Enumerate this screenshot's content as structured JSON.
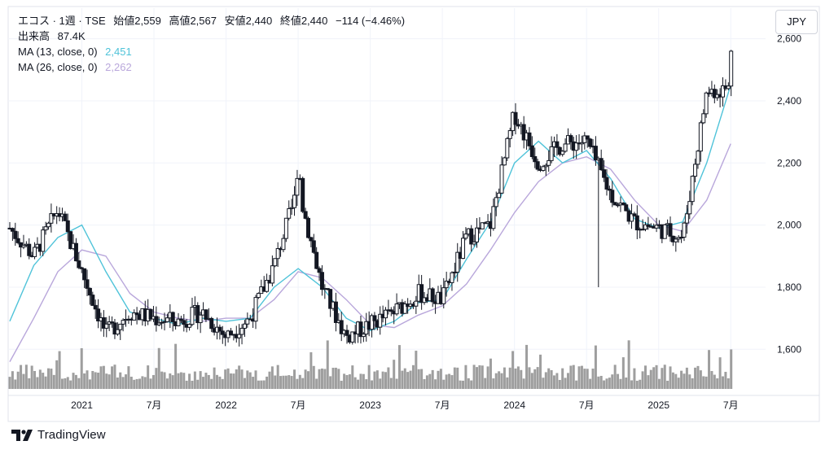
{
  "header": {
    "symbol_line": "エコス · 1週 · TSE",
    "open_label": "始値",
    "open": "2,559",
    "high_label": "高値",
    "high": "2,567",
    "low_label": "安値",
    "low": "2,440",
    "close_label": "終値",
    "close": "2,440",
    "change": "−114 (−4.46%)",
    "volume_label": "出来高",
    "volume": "87.4K",
    "ma13_label": "MA (13, close, 0)",
    "ma13_value": "2,451",
    "ma26_label": "MA (26, close, 0)",
    "ma26_value": "2,262"
  },
  "currency_button": "JPY",
  "brand": "TradingView",
  "colors": {
    "up": "#131722",
    "down": "#131722",
    "volume": "#9e9e9e",
    "ma13": "#4fc3d9",
    "ma26": "#b9a7db",
    "grid": "#f0f3fa"
  },
  "chart_data": {
    "type": "candlestick",
    "title": "",
    "y_axis": {
      "ticks": [
        1600,
        1800,
        2000,
        2200,
        2400,
        2600
      ],
      "ylim": [
        1530,
        2620
      ],
      "labels": [
        "1,600",
        "1,800",
        "2,000",
        "2,200",
        "2,400",
        "2,600"
      ]
    },
    "x_axis": {
      "ticks": [
        {
          "label": "2021",
          "date": "2021-01"
        },
        {
          "label": "7月",
          "date": "2021-07"
        },
        {
          "label": "2022",
          "date": "2022-01"
        },
        {
          "label": "7月",
          "date": "2022-07"
        },
        {
          "label": "2023",
          "date": "2023-01"
        },
        {
          "label": "7月",
          "date": "2023-07"
        },
        {
          "label": "2024",
          "date": "2024-01"
        },
        {
          "label": "7月",
          "date": "2024-07"
        },
        {
          "label": "2025",
          "date": "2025-01"
        },
        {
          "label": "7月",
          "date": "2025-07"
        }
      ],
      "range": [
        "2020-07",
        "2025-08"
      ]
    },
    "series": [
      {
        "name": "MA (13, close, 0)",
        "points": [
          [
            "2020-07",
            1690
          ],
          [
            "2020-09",
            1870
          ],
          [
            "2020-11",
            1960
          ],
          [
            "2021-01",
            2000
          ],
          [
            "2021-03",
            1850
          ],
          [
            "2021-05",
            1720
          ],
          [
            "2021-07",
            1700
          ],
          [
            "2021-09",
            1680
          ],
          [
            "2021-11",
            1700
          ],
          [
            "2022-01",
            1690
          ],
          [
            "2022-03",
            1700
          ],
          [
            "2022-05",
            1800
          ],
          [
            "2022-07",
            1860
          ],
          [
            "2022-09",
            1800
          ],
          [
            "2022-11",
            1700
          ],
          [
            "2023-01",
            1660
          ],
          [
            "2023-03",
            1690
          ],
          [
            "2023-05",
            1750
          ],
          [
            "2023-07",
            1760
          ],
          [
            "2023-09",
            1890
          ],
          [
            "2023-11",
            2010
          ],
          [
            "2024-01",
            2200
          ],
          [
            "2024-03",
            2270
          ],
          [
            "2024-05",
            2200
          ],
          [
            "2024-07",
            2240
          ],
          [
            "2024-09",
            2150
          ],
          [
            "2024-11",
            2020
          ],
          [
            "2025-01",
            1990
          ],
          [
            "2025-03",
            2010
          ],
          [
            "2025-05",
            2200
          ],
          [
            "2025-07",
            2451
          ]
        ]
      },
      {
        "name": "MA (26, close, 0)",
        "points": [
          [
            "2020-07",
            1560
          ],
          [
            "2020-09",
            1700
          ],
          [
            "2020-11",
            1850
          ],
          [
            "2021-01",
            1920
          ],
          [
            "2021-03",
            1900
          ],
          [
            "2021-05",
            1780
          ],
          [
            "2021-07",
            1720
          ],
          [
            "2021-09",
            1700
          ],
          [
            "2021-11",
            1690
          ],
          [
            "2022-01",
            1700
          ],
          [
            "2022-03",
            1700
          ],
          [
            "2022-05",
            1760
          ],
          [
            "2022-07",
            1850
          ],
          [
            "2022-09",
            1830
          ],
          [
            "2022-11",
            1760
          ],
          [
            "2023-01",
            1680
          ],
          [
            "2023-03",
            1670
          ],
          [
            "2023-05",
            1710
          ],
          [
            "2023-07",
            1740
          ],
          [
            "2023-09",
            1810
          ],
          [
            "2023-11",
            1920
          ],
          [
            "2024-01",
            2040
          ],
          [
            "2024-03",
            2140
          ],
          [
            "2024-05",
            2200
          ],
          [
            "2024-07",
            2220
          ],
          [
            "2024-09",
            2180
          ],
          [
            "2024-11",
            2080
          ],
          [
            "2025-01",
            2000
          ],
          [
            "2025-03",
            1980
          ],
          [
            "2025-05",
            2080
          ],
          [
            "2025-07",
            2262
          ]
        ]
      }
    ],
    "price_path": [
      [
        "2020-07",
        1990
      ],
      [
        "2020-09",
        1900
      ],
      [
        "2020-11",
        2050
      ],
      [
        "2021-01",
        1850
      ],
      [
        "2021-03",
        1650
      ],
      [
        "2021-05",
        1720
      ],
      [
        "2021-07",
        1700
      ],
      [
        "2021-09",
        1690
      ],
      [
        "2021-11",
        1720
      ],
      [
        "2022-01",
        1640
      ],
      [
        "2022-03",
        1700
      ],
      [
        "2022-05",
        1870
      ],
      [
        "2022-07",
        2120
      ],
      [
        "2022-09",
        1800
      ],
      [
        "2022-11",
        1640
      ],
      [
        "2023-01",
        1680
      ],
      [
        "2023-03",
        1720
      ],
      [
        "2023-05",
        1780
      ],
      [
        "2023-07",
        1760
      ],
      [
        "2023-09",
        1960
      ],
      [
        "2023-11",
        2000
      ],
      [
        "2024-01",
        2360
      ],
      [
        "2024-03",
        2200
      ],
      [
        "2024-05",
        2260
      ],
      [
        "2024-07",
        2270
      ],
      [
        "2024-09",
        2100
      ],
      [
        "2024-11",
        2010
      ],
      [
        "2025-01",
        1990
      ],
      [
        "2025-03",
        1960
      ],
      [
        "2025-05",
        2430
      ],
      [
        "2025-07",
        2440
      ]
    ],
    "extremes": {
      "high_2022_07": 2190,
      "low_2024_08": 1800,
      "high_2025_07": 2580
    }
  }
}
